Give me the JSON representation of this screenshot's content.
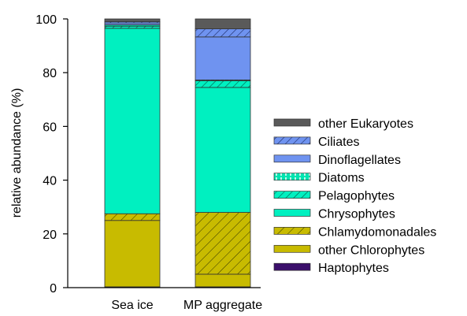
{
  "chart_data": {
    "type": "bar",
    "stacked": true,
    "title": "",
    "xlabel": "",
    "ylabel": "relative abundance (%)",
    "ylim": [
      0,
      100
    ],
    "yticks": [
      "0",
      "20",
      "40",
      "60",
      "80",
      "100"
    ],
    "grid": false,
    "legend_position": "right",
    "categories": [
      "Sea ice",
      "MP aggregate"
    ],
    "series": [
      {
        "name": "Haptophytes",
        "values": [
          0.3,
          0.3
        ],
        "color": "#3b0f6b",
        "pattern": "solid"
      },
      {
        "name": "other Chlorophytes",
        "values": [
          24.7,
          4.7
        ],
        "color": "#c8bb00",
        "pattern": "solid"
      },
      {
        "name": "Chlamydomonadales",
        "values": [
          2.5,
          23.0
        ],
        "color": "#c8bb00",
        "pattern": "diagonal-hatch"
      },
      {
        "name": "Chrysophytes",
        "values": [
          69.0,
          46.5
        ],
        "color": "#00f0c0",
        "pattern": "solid"
      },
      {
        "name": "Pelagophytes",
        "values": [
          0.8,
          2.5
        ],
        "color": "#00f0c0",
        "pattern": "diagonal-hatch"
      },
      {
        "name": "Diatoms",
        "values": [
          0.5,
          0.3
        ],
        "color": "#00e4b0",
        "pattern": "dashed-lines"
      },
      {
        "name": "Dinoflagellates",
        "values": [
          0.7,
          16.0
        ],
        "color": "#6f93f0",
        "pattern": "solid"
      },
      {
        "name": "Ciliates",
        "values": [
          0.5,
          3.0
        ],
        "color": "#6f93f0",
        "pattern": "diagonal-hatch"
      },
      {
        "name": "other Eukaryotes",
        "values": [
          1.0,
          3.7
        ],
        "color": "#5a5a5a",
        "pattern": "solid"
      }
    ]
  }
}
